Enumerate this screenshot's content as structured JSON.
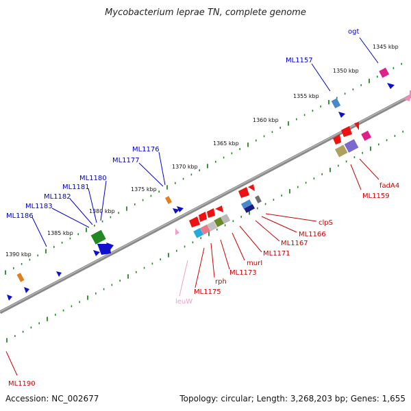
{
  "title": "Mycobacterium leprae TN, complete genome",
  "footer": {
    "accession": "Accession: NC_002677",
    "summary": "Topology: circular; Length: 3,268,203 bp; Genes: 1,655"
  },
  "colors": {
    "forward_label": "#0000cc",
    "reverse_label": "#cc0000",
    "trna_label": "#f0a0c8",
    "backbone": "#888888",
    "dots": "#228822"
  },
  "kbp_ticks": [
    "1345 kbp",
    "1350 kbp",
    "1355 kbp",
    "1360 kbp",
    "1365 kbp",
    "1370 kbp",
    "1375 kbp",
    "1380 kbp",
    "1385 kbp",
    "1390 kbp"
  ],
  "forward_genes": [
    "ogt",
    "ML1157",
    "ML1176",
    "ML1177",
    "ML1180",
    "ML1181",
    "ML1182",
    "ML1183",
    "ML1186"
  ],
  "reverse_genes": [
    "fadA4",
    "ML1159",
    "clpS",
    "ML1166",
    "ML1167",
    "ML1171",
    "murI",
    "ML1173",
    "rph",
    "ML1175",
    "ML1190"
  ],
  "trna_genes": [
    "leuW"
  ]
}
